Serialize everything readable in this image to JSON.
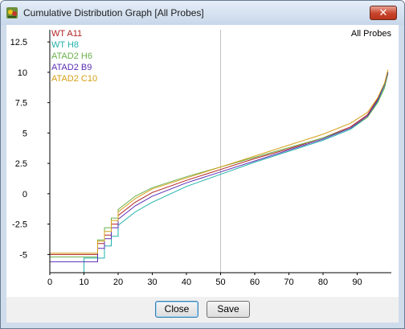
{
  "window": {
    "title": "Cumulative Distribution Graph [All Probes]",
    "close_glyph": "✕",
    "icon": "seqmonk-app-icon"
  },
  "chart_data": {
    "type": "line",
    "panel_label": "All Probes",
    "xlabel": "",
    "ylabel": "",
    "xlim": [
      0,
      100
    ],
    "ylim": [
      -6.5,
      13.5
    ],
    "x_ticks": [
      0,
      10,
      20,
      30,
      40,
      50,
      60,
      70,
      80,
      90
    ],
    "y_ticks": [
      -5,
      -2.5,
      0,
      2.5,
      5,
      7.5,
      10,
      12.5
    ],
    "y_tick_labels": [
      "-5",
      "-2.5",
      "0",
      "2.5",
      "5",
      "7.5",
      "10",
      "12.5"
    ],
    "reference_line_x": 50,
    "legend_position": "top-left",
    "series": [
      {
        "name": "WT A11",
        "color": "#b22222",
        "points": [
          [
            0,
            -5.0
          ],
          [
            13,
            -5.0
          ],
          [
            14,
            -4.1
          ],
          [
            16,
            -3.4
          ],
          [
            18,
            -2.5
          ],
          [
            20,
            -1.8
          ],
          [
            25,
            -0.7
          ],
          [
            30,
            0.1
          ],
          [
            40,
            1.1
          ],
          [
            50,
            2.0
          ],
          [
            60,
            2.9
          ],
          [
            70,
            3.7
          ],
          [
            80,
            4.6
          ],
          [
            88,
            5.5
          ],
          [
            93,
            6.5
          ],
          [
            96,
            7.8
          ],
          [
            98,
            9.0
          ],
          [
            99,
            10.0
          ]
        ]
      },
      {
        "name": "WT H8",
        "color": "#20b2aa",
        "points": [
          [
            0,
            -6.5
          ],
          [
            9,
            -6.5
          ],
          [
            10,
            -5.3
          ],
          [
            15,
            -5.3
          ],
          [
            16,
            -4.3
          ],
          [
            18,
            -3.5
          ],
          [
            20,
            -2.6
          ],
          [
            25,
            -1.5
          ],
          [
            30,
            -0.7
          ],
          [
            40,
            0.6
          ],
          [
            50,
            1.6
          ],
          [
            60,
            2.6
          ],
          [
            70,
            3.5
          ],
          [
            80,
            4.4
          ],
          [
            88,
            5.3
          ],
          [
            93,
            6.3
          ],
          [
            96,
            7.6
          ],
          [
            98,
            8.9
          ],
          [
            99,
            10.0
          ]
        ]
      },
      {
        "name": "ATAD2 H6",
        "color": "#6ab04c",
        "points": [
          [
            0,
            -5.2
          ],
          [
            13,
            -5.2
          ],
          [
            14,
            -3.8
          ],
          [
            16,
            -2.8
          ],
          [
            18,
            -2.0
          ],
          [
            20,
            -1.3
          ],
          [
            25,
            -0.2
          ],
          [
            30,
            0.5
          ],
          [
            40,
            1.4
          ],
          [
            50,
            2.2
          ],
          [
            60,
            3.0
          ],
          [
            70,
            3.8
          ],
          [
            80,
            4.6
          ],
          [
            88,
            5.4
          ],
          [
            93,
            6.3
          ],
          [
            96,
            7.5
          ],
          [
            98,
            8.7
          ],
          [
            99,
            9.9
          ]
        ]
      },
      {
        "name": "ATAD2 B9",
        "color": "#5a2db5",
        "points": [
          [
            0,
            -5.6
          ],
          [
            13,
            -5.6
          ],
          [
            14,
            -4.5
          ],
          [
            16,
            -3.7
          ],
          [
            18,
            -2.8
          ],
          [
            20,
            -2.1
          ],
          [
            25,
            -1.0
          ],
          [
            30,
            -0.2
          ],
          [
            40,
            0.9
          ],
          [
            50,
            1.8
          ],
          [
            60,
            2.7
          ],
          [
            70,
            3.6
          ],
          [
            80,
            4.5
          ],
          [
            88,
            5.4
          ],
          [
            93,
            6.4
          ],
          [
            96,
            7.7
          ],
          [
            98,
            9.0
          ],
          [
            99,
            10.0
          ]
        ]
      },
      {
        "name": "ATAD2 C10",
        "color": "#d4a017",
        "points": [
          [
            0,
            -4.9
          ],
          [
            13,
            -4.9
          ],
          [
            14,
            -3.9
          ],
          [
            16,
            -3.1
          ],
          [
            18,
            -2.2
          ],
          [
            20,
            -1.5
          ],
          [
            25,
            -0.4
          ],
          [
            30,
            0.4
          ],
          [
            40,
            1.3
          ],
          [
            50,
            2.2
          ],
          [
            60,
            3.1
          ],
          [
            70,
            4.0
          ],
          [
            80,
            4.9
          ],
          [
            88,
            5.8
          ],
          [
            93,
            6.7
          ],
          [
            96,
            7.9
          ],
          [
            98,
            9.1
          ],
          [
            99,
            10.2
          ]
        ]
      }
    ]
  },
  "buttons": {
    "close_label": "Close",
    "save_label": "Save"
  }
}
